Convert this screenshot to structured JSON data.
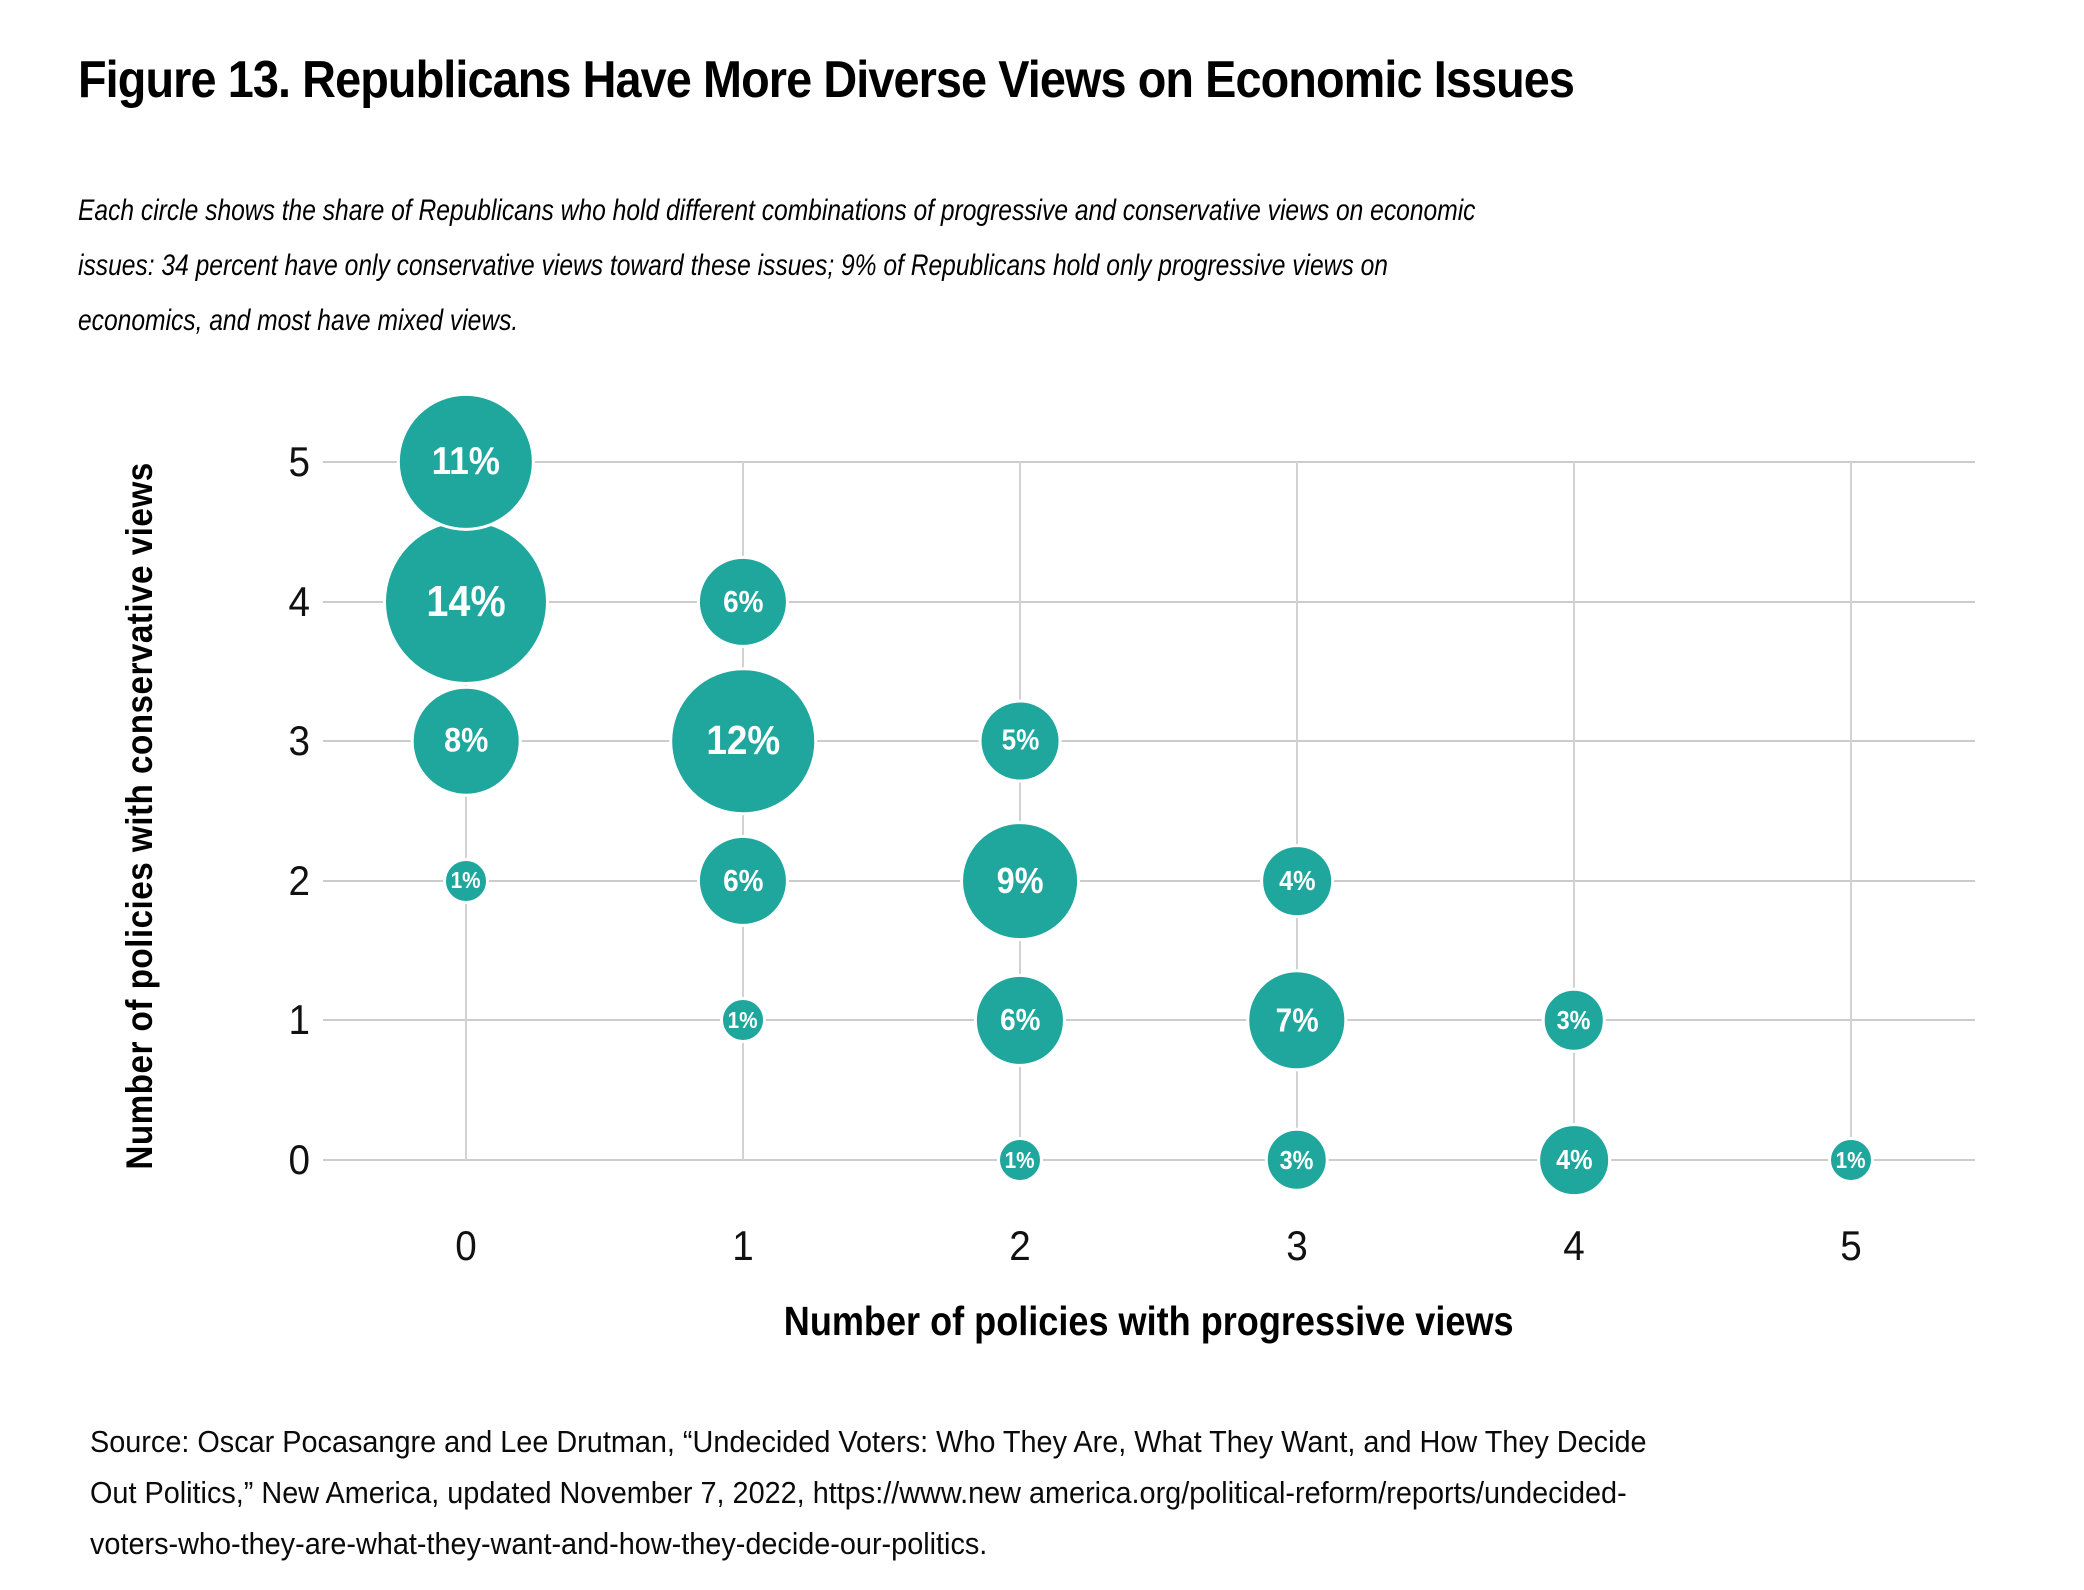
{
  "title": "Figure 13. Republicans Have More Diverse Views on Economic Issues",
  "subtitle": {
    "lines": [
      "Each circle shows the share of Republicans who hold different combinations of progressive and conservative views on economic",
      "issues: 34 percent have only conservative views toward these issues; 9% of Republicans hold only progressive views on",
      "economics, and most have mixed views."
    ]
  },
  "chart_data": {
    "type": "scatter",
    "subtype": "bubble",
    "title": "Figure 13. Republicans Have More Diverse Views on Economic Issues",
    "xlabel": "Number of policies with progressive views",
    "ylabel": "Number of policies with conservative views",
    "x_ticks": [
      0,
      1,
      2,
      3,
      4,
      5
    ],
    "y_ticks": [
      0,
      1,
      2,
      3,
      4,
      5
    ],
    "xlim": [
      -0.5,
      5.45
    ],
    "ylim": [
      -0.5,
      5.5
    ],
    "grid": true,
    "legend": "none",
    "bubble_color": "#1FA69D",
    "label_color": "#ffffff",
    "gridline_color": "#cccccc",
    "size_encoding": "bubble area represents share of Republicans (%)",
    "points": [
      {
        "x": 2,
        "y": 0,
        "value": 1,
        "label": "1%"
      },
      {
        "x": 3,
        "y": 0,
        "value": 3,
        "label": "3%"
      },
      {
        "x": 4,
        "y": 0,
        "value": 4,
        "label": "4%"
      },
      {
        "x": 5,
        "y": 0,
        "value": 1,
        "label": "1%"
      },
      {
        "x": 1,
        "y": 1,
        "value": 1,
        "label": "1%"
      },
      {
        "x": 2,
        "y": 1,
        "value": 6,
        "label": "6%"
      },
      {
        "x": 3,
        "y": 1,
        "value": 7,
        "label": "7%"
      },
      {
        "x": 4,
        "y": 1,
        "value": 3,
        "label": "3%"
      },
      {
        "x": 0,
        "y": 2,
        "value": 1,
        "label": "1%"
      },
      {
        "x": 1,
        "y": 2,
        "value": 6,
        "label": "6%"
      },
      {
        "x": 2,
        "y": 2,
        "value": 9,
        "label": "9%"
      },
      {
        "x": 3,
        "y": 2,
        "value": 4,
        "label": "4%"
      },
      {
        "x": 0,
        "y": 3,
        "value": 8,
        "label": "8%"
      },
      {
        "x": 1,
        "y": 3,
        "value": 12,
        "label": "12%"
      },
      {
        "x": 2,
        "y": 3,
        "value": 5,
        "label": "5%"
      },
      {
        "x": 0,
        "y": 4,
        "value": 14,
        "label": "14%"
      },
      {
        "x": 1,
        "y": 4,
        "value": 6,
        "label": "6%"
      },
      {
        "x": 0,
        "y": 5,
        "value": 11,
        "label": "11%"
      }
    ]
  },
  "source": {
    "lines": [
      "Source: Oscar Pocasangre and Lee Drutman, “Undecided Voters: Who They Are, What They Want, and How They Decide",
      "Out Politics,” New America, updated November 7, 2022, https://www.new america.org/political-reform/reports/undecided-",
      "voters-who-they-are-what-they-want-and-how-they-decide-our-politics."
    ]
  }
}
